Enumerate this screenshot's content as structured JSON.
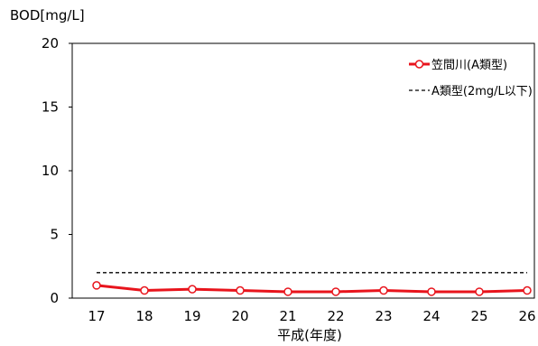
{
  "chart_data": {
    "type": "line",
    "ylabel": "BOD[mg/L]",
    "xlabel": "平成(年度)",
    "categories": [
      "17",
      "18",
      "19",
      "20",
      "21",
      "22",
      "23",
      "24",
      "25",
      "26"
    ],
    "ylim": [
      0,
      20
    ],
    "yticks": [
      "0",
      "5",
      "10",
      "15",
      "20"
    ],
    "grid": false,
    "legend_position": "top-right",
    "series": [
      {
        "name": "笠間川(A類型)",
        "values": [
          1.0,
          0.6,
          0.7,
          0.6,
          0.5,
          0.5,
          0.6,
          0.5,
          0.5,
          0.6
        ],
        "color": "#e8141c",
        "marker": "open-circle",
        "style": "solid"
      }
    ],
    "reference_lines": [
      {
        "name": "A類型(2mg/L以下)",
        "value": 2,
        "color": "#000000",
        "style": "dashed"
      }
    ]
  }
}
